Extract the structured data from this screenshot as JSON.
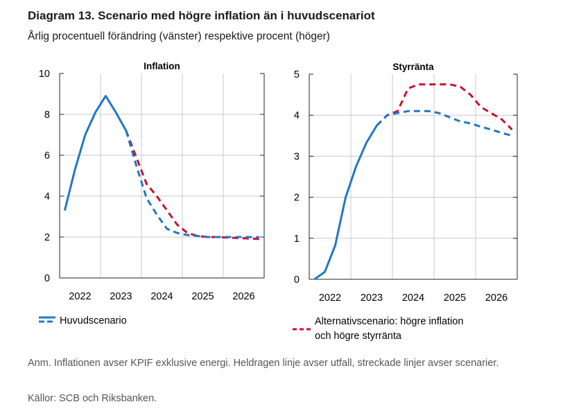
{
  "title": "Diagram 13. Scenario med högre inflation än i huvudscenariot",
  "subtitle": "Årlig procentuell förändring (vänster) respektive procent (höger)",
  "note": "Anm. Inflationen avser KPIF exklusive energi. Heldragen linje avser utfall, streckade linjer avser scenarier.",
  "source": "Källor: SCB och Riksbanken.",
  "colors": {
    "main": "#1f77c4",
    "alt": "#c8102e",
    "grid": "#c8c8c8"
  },
  "legend": [
    {
      "label": "Huvudscenario",
      "color": "#1f77c4",
      "style": "dashed-solid"
    },
    {
      "label": "Alternativscenario: högre inflation och högre styrränta",
      "lines": [
        "Alternativscenario: högre inflation",
        "och högre styrränta"
      ],
      "color": "#c8102e",
      "style": "dashed"
    }
  ],
  "chart_data": [
    {
      "type": "line",
      "title": "Inflation",
      "xlim": [
        2022,
        2027
      ],
      "ylim": [
        0,
        10
      ],
      "yticks": [
        "0",
        "2",
        "4",
        "6",
        "8",
        "10"
      ],
      "xticks": [
        "2022",
        "2023",
        "2024",
        "2025",
        "2026"
      ],
      "grid": true,
      "x": [
        "2022Q1",
        "2022Q2",
        "2022Q3",
        "2022Q4",
        "2023Q1",
        "2023Q2",
        "2023Q3",
        "2023Q4",
        "2024Q1",
        "2024Q2",
        "2024Q3",
        "2024Q4",
        "2025Q1",
        "2025Q2",
        "2025Q3",
        "2025Q4",
        "2026Q1",
        "2026Q2",
        "2026Q3",
        "2026Q4"
      ],
      "series": [
        {
          "name": "Utfall",
          "style": "solid",
          "color": "#1f77c4",
          "values": [
            3.3,
            5.3,
            7.0,
            8.1,
            8.9,
            8.1,
            7.2,
            null,
            null,
            null,
            null,
            null,
            null,
            null,
            null,
            null,
            null,
            null,
            null,
            null
          ]
        },
        {
          "name": "Alternativscenario: högre inflation och högre styrränta",
          "style": "dashed",
          "color": "#c8102e",
          "values": [
            null,
            null,
            null,
            null,
            null,
            null,
            7.2,
            5.9,
            4.6,
            4.0,
            3.3,
            2.6,
            2.2,
            2.05,
            2.0,
            2.0,
            1.97,
            1.95,
            1.93,
            1.9
          ]
        },
        {
          "name": "Huvudscenario",
          "style": "dashed",
          "color": "#1f77c4",
          "values": [
            null,
            null,
            null,
            null,
            null,
            null,
            7.2,
            5.5,
            3.9,
            3.1,
            2.4,
            2.2,
            2.1,
            2.05,
            2.0,
            2.0,
            2.0,
            2.0,
            2.0,
            2.0
          ]
        }
      ]
    },
    {
      "type": "line",
      "title": "Styrränta",
      "xlim": [
        2022,
        2027
      ],
      "ylim": [
        0,
        5
      ],
      "yticks": [
        "0",
        "1",
        "2",
        "3",
        "4",
        "5"
      ],
      "xticks": [
        "2022",
        "2023",
        "2024",
        "2025",
        "2026"
      ],
      "grid": true,
      "x": [
        "2022Q1",
        "2022Q2",
        "2022Q3",
        "2022Q4",
        "2023Q1",
        "2023Q2",
        "2023Q3",
        "2023Q4",
        "2024Q1",
        "2024Q2",
        "2024Q3",
        "2024Q4",
        "2025Q1",
        "2025Q2",
        "2025Q3",
        "2025Q4",
        "2026Q1",
        "2026Q2",
        "2026Q3",
        "2026Q4"
      ],
      "series": [
        {
          "name": "Utfall",
          "style": "solid",
          "color": "#1f77c4",
          "values": [
            0.0,
            0.18,
            0.83,
            2.0,
            2.75,
            3.33,
            3.75,
            null,
            null,
            null,
            null,
            null,
            null,
            null,
            null,
            null,
            null,
            null,
            null,
            null
          ]
        },
        {
          "name": "Alternativscenario: högre inflation och högre styrränta",
          "style": "dashed",
          "color": "#c8102e",
          "values": [
            null,
            null,
            null,
            null,
            null,
            null,
            3.75,
            4.0,
            4.1,
            4.65,
            4.75,
            4.75,
            4.75,
            4.75,
            4.7,
            4.5,
            4.2,
            4.05,
            3.9,
            3.65
          ]
        },
        {
          "name": "Huvudscenario",
          "style": "dashed",
          "color": "#1f77c4",
          "values": [
            null,
            null,
            null,
            null,
            null,
            null,
            3.75,
            4.0,
            4.05,
            4.1,
            4.1,
            4.1,
            4.05,
            3.95,
            3.85,
            3.8,
            3.72,
            3.65,
            3.57,
            3.5
          ]
        }
      ]
    }
  ]
}
